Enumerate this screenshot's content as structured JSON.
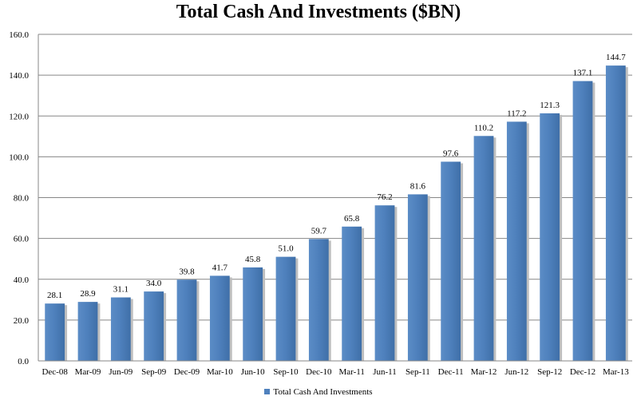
{
  "chart_data": {
    "type": "bar",
    "title": "Total Cash And Investments ($BN)",
    "categories": [
      "Dec-08",
      "Mar-09",
      "Jun-09",
      "Sep-09",
      "Dec-09",
      "Mar-10",
      "Jun-10",
      "Sep-10",
      "Dec-10",
      "Mar-11",
      "Jun-11",
      "Sep-11",
      "Dec-11",
      "Mar-12",
      "Jun-12",
      "Sep-12",
      "Dec-12",
      "Mar-13"
    ],
    "series": [
      {
        "name": "Total Cash And Investments",
        "values": [
          28.1,
          28.9,
          31.1,
          34.0,
          39.8,
          41.7,
          45.8,
          51.0,
          59.7,
          65.8,
          76.2,
          81.6,
          97.6,
          110.2,
          117.2,
          121.3,
          137.1,
          144.7
        ],
        "labels": [
          "28.1",
          "28.9",
          "31.1",
          "34.0",
          "39.8",
          "41.7",
          "45.8",
          "51.0",
          "59.7",
          "65.8",
          "76.2",
          "81.6",
          "97.6",
          "110.2",
          "117.2",
          "121.3",
          "137.1",
          "144.7"
        ],
        "color": "#4f81bd"
      }
    ],
    "ylim": [
      0,
      160
    ],
    "yticks": [
      "0.0",
      "20.0",
      "40.0",
      "60.0",
      "80.0",
      "100.0",
      "120.0",
      "140.0",
      "160.0"
    ],
    "xlabel": "",
    "ylabel": "",
    "grid": true,
    "legend": "bottom"
  }
}
